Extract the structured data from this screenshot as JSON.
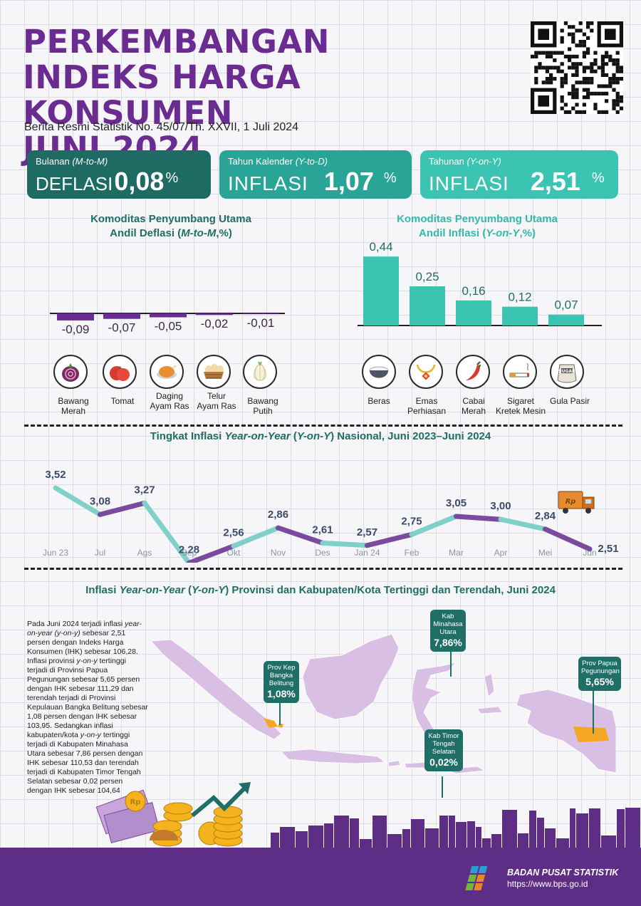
{
  "header": {
    "title_lines": [
      "PERKEMBANGAN",
      "INDEKS HARGA KONSUMEN",
      "JUNI 2024"
    ],
    "subtitle": "Berita Resmi Statistik No. 45/07/Th. XXVII, 1 Juli 2024"
  },
  "kpis": [
    {
      "label": "Bulanan",
      "label_en": "(M-to-M)",
      "word": "DEFLASI",
      "value": "0,08",
      "unit": "%"
    },
    {
      "label": "Tahun Kalender",
      "label_en": "(Y-to-D)",
      "word": "INFLASI",
      "value": "1,07",
      "unit": "%"
    },
    {
      "label": "Tahunan",
      "label_en": "(Y-on-Y)",
      "word": "INFLASI",
      "value": "2,51",
      "unit": "%"
    }
  ],
  "deflasi_section": {
    "title_line1": "Komoditas Penyumbang Utama",
    "title_line2_a": "Andil Deflasi (",
    "title_line2_i": "M-to-M",
    "title_line2_b": ",%)"
  },
  "inflasi_section": {
    "title_line1": "Komoditas Penyumbang Utama",
    "title_line2_a": "Andil Inflasi (",
    "title_line2_i": "Y-on-Y",
    "title_line2_b": ",%)"
  },
  "chart_data": [
    {
      "type": "bar",
      "categories": [
        "Bawang Merah",
        "Tomat",
        "Daging Ayam Ras",
        "Telur Ayam Ras",
        "Bawang Putih"
      ],
      "values": [
        -0.09,
        -0.07,
        -0.05,
        -0.02,
        -0.01
      ],
      "labels": [
        "-0,09",
        "-0,07",
        "-0,05",
        "-0,02",
        "-0,01"
      ],
      "color": "#6a2c91"
    },
    {
      "type": "bar",
      "categories": [
        "Beras",
        "Emas Perhiasan",
        "Cabai Merah",
        "Sigaret Kretek Mesin",
        "Gula Pasir"
      ],
      "values": [
        0.44,
        0.25,
        0.16,
        0.12,
        0.07
      ],
      "labels": [
        "0,44",
        "0,25",
        "0,16",
        "0,12",
        "0,07"
      ],
      "color": "#3cc4b3"
    },
    {
      "type": "line",
      "x": [
        "Jun 23",
        "Jul",
        "Ags",
        "Sep",
        "Okt",
        "Nov",
        "Des",
        "Jan 24",
        "Feb",
        "Mar",
        "Apr",
        "Mei",
        "Jun"
      ],
      "values": [
        3.52,
        3.08,
        3.27,
        2.28,
        2.56,
        2.86,
        2.61,
        2.57,
        2.75,
        3.05,
        3.0,
        2.84,
        2.51
      ],
      "labels": [
        "3,52",
        "3,08",
        "3,27",
        "2,28",
        "2,56",
        "2,86",
        "2,61",
        "2,57",
        "2,75",
        "3,05",
        "3,00",
        "2,84",
        "2,51"
      ],
      "colors": [
        "#7fd0c8",
        "#7a4a9e"
      ]
    }
  ],
  "defl_commodities": [
    {
      "l1": "Bawang",
      "l2": "Merah",
      "icon": "onion-icon"
    },
    {
      "l1": "Tomat",
      "l2": "",
      "icon": "tomato-icon"
    },
    {
      "l1": "Daging",
      "l2": "Ayam Ras",
      "icon": "chicken-icon"
    },
    {
      "l1": "Telur",
      "l2": "Ayam Ras",
      "icon": "eggs-icon"
    },
    {
      "l1": "Bawang",
      "l2": "Putih",
      "icon": "garlic-icon"
    }
  ],
  "infl_commodities": [
    {
      "l1": "Beras",
      "l2": "",
      "icon": "rice-bowl-icon"
    },
    {
      "l1": "Emas",
      "l2": "Perhiasan",
      "icon": "gold-jewelry-icon"
    },
    {
      "l1": "Cabai",
      "l2": "Merah",
      "icon": "chili-icon"
    },
    {
      "l1": "Sigaret",
      "l2": "Kretek Mesin",
      "icon": "cigarette-icon"
    },
    {
      "l1": "Gula Pasir",
      "l2": "",
      "icon": "sugar-sack-icon"
    }
  ],
  "sugar_tag": "SUGAR",
  "line_chart_title": {
    "a": "Tingkat Inflasi ",
    "i": "Year-on-Year",
    "b": " (",
    "i2": "Y-on-Y",
    "c": ") Nasional, Juni 2023–Juni 2024"
  },
  "map_title": {
    "a": "Inflasi ",
    "i": "Year-on-Year",
    "b": " (",
    "i2": "Y-on-Y",
    "c": ") Provinsi dan Kabupaten/Kota Tertinggi dan Terendah, Juni 2024"
  },
  "narrative": {
    "p1": "Pada Juni 2024 terjadi inflasi ",
    "p1i": "year-on-year (y-on-y)",
    "p2": " sebesar 2,51 persen dengan Indeks Harga Konsumen (IHK) sebesar 106,28. Inflasi provinsi ",
    "p2i": "y-on-y",
    "p3": " tertinggi terjadi di Provinsi Papua Pegunungan sebesar 5,65 persen dengan IHK sebesar 111,29 dan terendah terjadi di Provinsi Kepulauan Bangka Belitung sebesar 1,08 persen dengan IHK sebesar 103,95. Sedangkan inflasi kabupaten/kota ",
    "p3i": "y-on-y",
    "p4": " tertinggi terjadi di Kabupaten Minahasa Utara sebesar 7,86 persen dengan IHK sebesar 110,53 dan terendah terjadi di Kabupaten Timor Tengah Selatan sebesar 0,02 persen dengan IHK sebesar 104,64"
  },
  "callouts": [
    {
      "lines": [
        "Prov Kep",
        "Bangka",
        "Belitung"
      ],
      "value": "1,08%"
    },
    {
      "lines": [
        "Kab",
        "Minahasa",
        "Utara"
      ],
      "value": "7,86%"
    },
    {
      "lines": [
        "Prov Papua",
        "Pegunungan"
      ],
      "value": "5,65%"
    },
    {
      "lines": [
        "Kab Timor",
        "Tengah",
        "Selatan"
      ],
      "value": "0,02%"
    }
  ],
  "truck_tag": "Rp",
  "coin_tag": "Rp",
  "footer": {
    "brand": "BADAN PUSAT STATISTIK",
    "url": "https://www.bps.go.id"
  },
  "colors": {
    "purple": "#6a2c91",
    "teal_dark": "#1e6b63",
    "teal": "#28a596",
    "teal_light": "#3cc4b3",
    "footer": "#5e2e86"
  }
}
